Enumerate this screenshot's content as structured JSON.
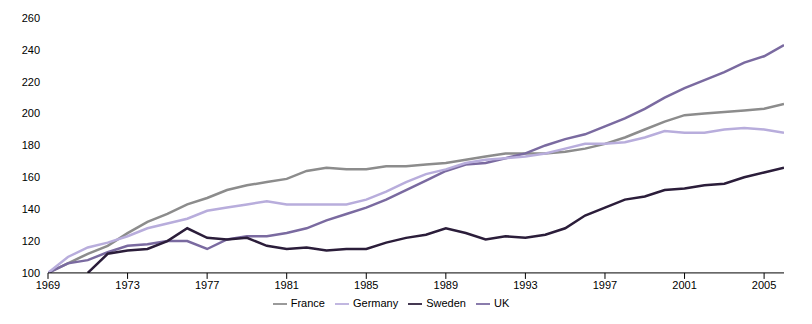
{
  "chart_data": {
    "type": "line",
    "x": [
      1969,
      1970,
      1971,
      1972,
      1973,
      1974,
      1975,
      1976,
      1977,
      1978,
      1979,
      1980,
      1981,
      1982,
      1983,
      1984,
      1985,
      1986,
      1987,
      1988,
      1989,
      1990,
      1991,
      1992,
      1993,
      1994,
      1995,
      1996,
      1997,
      1998,
      1999,
      2000,
      2001,
      2002,
      2003,
      2004,
      2005,
      2006
    ],
    "series": [
      {
        "name": "France",
        "color": "#8c8c8c",
        "values": [
          100,
          106,
          112,
          117,
          125,
          132,
          137,
          143,
          147,
          152,
          155,
          157,
          159,
          164,
          166,
          165,
          165,
          167,
          167,
          168,
          169,
          171,
          173,
          175,
          175,
          175,
          176,
          178,
          181,
          185,
          190,
          195,
          199,
          200,
          201,
          202,
          203,
          206
        ]
      },
      {
        "name": "UK",
        "color": "#7a6aa0",
        "values": [
          100,
          106,
          108,
          113,
          117,
          118,
          120,
          120,
          115,
          121,
          123,
          123,
          125,
          128,
          133,
          137,
          141,
          146,
          152,
          158,
          164,
          168,
          169,
          172,
          175,
          180,
          184,
          187,
          192,
          197,
          203,
          210,
          216,
          221,
          226,
          232,
          236,
          243
        ]
      },
      {
        "name": "Germany",
        "color": "#b8addc",
        "values": [
          100,
          110,
          116,
          119,
          123,
          128,
          131,
          134,
          139,
          141,
          143,
          145,
          143,
          143,
          143,
          143,
          146,
          151,
          157,
          162,
          165,
          169,
          171,
          172,
          173,
          175,
          178,
          181,
          181,
          182,
          185,
          189,
          188,
          188,
          190,
          191,
          190,
          188
        ]
      },
      {
        "name": "Sweden",
        "color": "#2b1d3a",
        "values": [
          null,
          null,
          100,
          112,
          114,
          115,
          120,
          128,
          122,
          121,
          122,
          117,
          115,
          116,
          114,
          115,
          115,
          119,
          122,
          124,
          128,
          125,
          121,
          123,
          122,
          124,
          128,
          136,
          141,
          146,
          148,
          152,
          153,
          155,
          156,
          160,
          163,
          166
        ]
      }
    ],
    "xlim": [
      1969,
      2006
    ],
    "xticks": [
      1969,
      1973,
      1977,
      1981,
      1985,
      1989,
      1993,
      1997,
      2001,
      2005
    ],
    "ylim": [
      100,
      260
    ],
    "yticks": [
      100,
      120,
      140,
      160,
      180,
      200,
      220,
      240,
      260
    ],
    "grid": false,
    "legend": "bottom"
  }
}
